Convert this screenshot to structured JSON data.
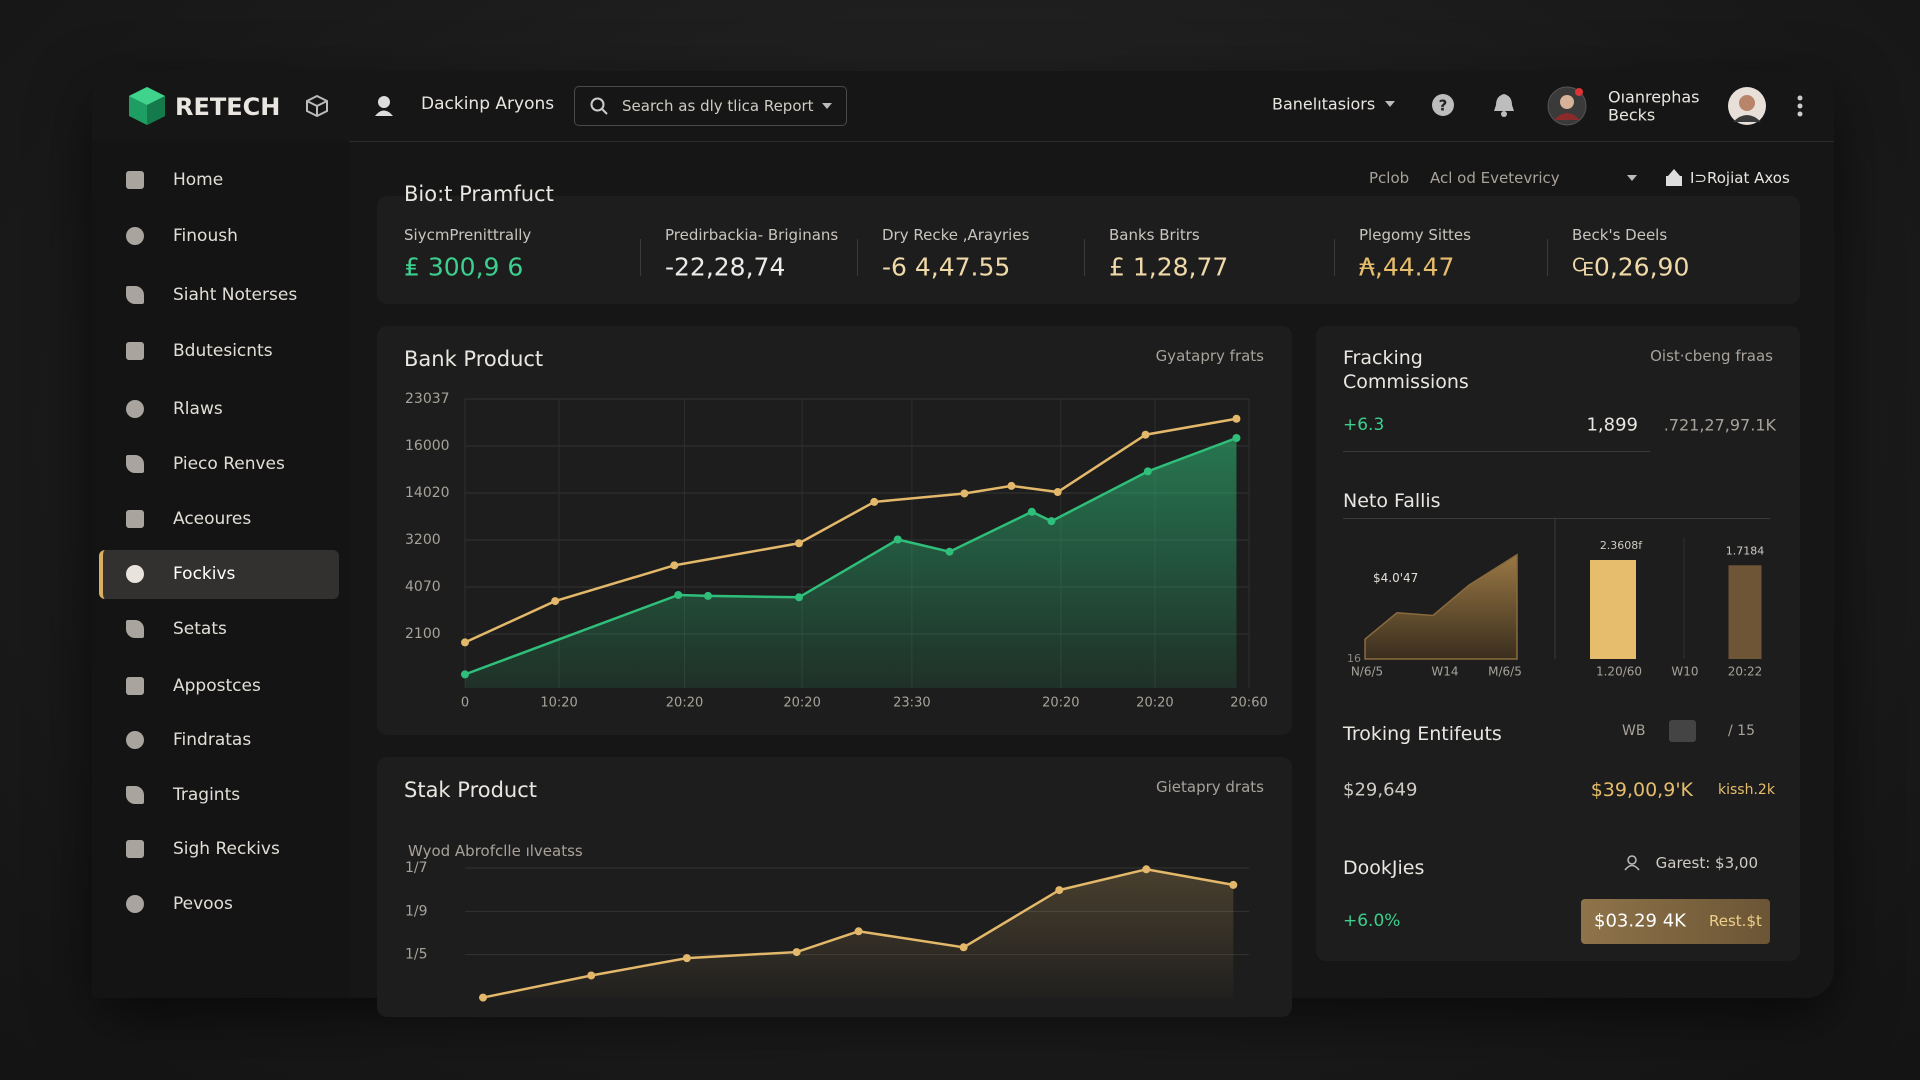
{
  "header": {
    "brand": "RETECH",
    "workspace": "Dackinp Aryons",
    "search": "Search as dly tlica Report",
    "menu": "Banelıtasiors",
    "user": [
      "Oıanrephas",
      "Becks"
    ]
  },
  "sidebar": {
    "items": [
      "Home",
      "Finoush",
      "Siaht Noterses",
      "Bdutesicnts",
      "Rlaws",
      "Pieco Renves",
      "Aceoures",
      "Fockivs",
      "Setats",
      "Appostces",
      "Findratas",
      "Tragints",
      "Sigh Reckivs",
      "Pevoos"
    ],
    "active": 7
  },
  "kpi": {
    "title": "Bio:t Pramfuct",
    "controls": [
      "Pclob",
      "Acl od Evetevricy",
      "I⊃Rojiat Axos"
    ],
    "items": [
      {
        "label": "SiycmPrenittrally",
        "value": "₤ 300,9 6"
      },
      {
        "label": "Predirbackia- Briginans",
        "value": "-22,28,74"
      },
      {
        "label": "Dry Recke ,Arayries",
        "value": "-6 4,47.55"
      },
      {
        "label": "Banks Britrs",
        "value": "£ 1,28,77"
      },
      {
        "label": "Plegomy Sittes",
        "value": "₳,44.47"
      },
      {
        "label": "Beck's Deels",
        "value": "₠0,26,90"
      }
    ]
  },
  "chart_data": [
    {
      "type": "line",
      "title": "Bank Product",
      "note": "Gyatapry frats",
      "xlim": [
        0,
        100
      ],
      "ylim": [
        -1.15,
        5
      ],
      "xticks": [
        {
          "value": 0,
          "label": "0"
        },
        {
          "value": 12,
          "label": "10:20"
        },
        {
          "value": 28,
          "label": "20:20"
        },
        {
          "value": 43,
          "label": "20:20"
        },
        {
          "value": 57,
          "label": "23:30"
        },
        {
          "value": 76,
          "label": "20:20"
        },
        {
          "value": 88,
          "label": "20:20"
        },
        {
          "value": 100,
          "label": "20:60"
        }
      ],
      "yticks": [
        {
          "value": 5,
          "label": "23037"
        },
        {
          "value": 4,
          "label": "16000"
        },
        {
          "value": 3,
          "label": "14020"
        },
        {
          "value": 2,
          "label": "3200"
        },
        {
          "value": 1,
          "label": "4070"
        },
        {
          "value": 0,
          "label": "2100"
        }
      ],
      "grid": true,
      "series": [
        {
          "color": "#e3b86a",
          "fill": false,
          "x": [
            0,
            11.5,
            26.7,
            42.6,
            52.2,
            63.7,
            69.7,
            75.6,
            86.8,
            98.4
          ],
          "values": [
            -0.18,
            0.7,
            1.46,
            1.93,
            2.81,
            2.99,
            3.15,
            3.02,
            4.24,
            4.58
          ]
        },
        {
          "color": "#2fbf7a",
          "fill": true,
          "x": [
            0,
            27.2,
            31,
            42.6,
            55.2,
            61.8,
            72.3,
            74.8,
            87.1,
            98.4
          ],
          "values": [
            -0.86,
            0.83,
            0.81,
            0.78,
            2.01,
            1.75,
            2.6,
            2.4,
            3.46,
            4.17
          ]
        }
      ]
    },
    {
      "type": "line",
      "title": "Stak Product",
      "note": "Gietapry drats",
      "subtitle": "Wyod Abrofclle ılveatss",
      "xlim": [
        0,
        100
      ],
      "ylim": [
        -1,
        2
      ],
      "yticks": [
        {
          "value": 2,
          "label": "1/7"
        },
        {
          "value": 1,
          "label": "1/9"
        },
        {
          "value": 0,
          "label": "1/5"
        }
      ],
      "grid": true,
      "series": [
        {
          "color": "#e3b86a",
          "fill": true,
          "x": [
            2.3,
            16.1,
            28.3,
            42.3,
            50.2,
            63.6,
            75.8,
            86.9,
            98
          ],
          "values": [
            -0.99,
            -0.48,
            -0.08,
            0.06,
            0.54,
            0.17,
            1.49,
            1.97,
            1.61
          ]
        }
      ]
    },
    {
      "type": "combo",
      "title": "Neto Fallis",
      "xlim": [
        0,
        100
      ],
      "ylim": [
        0,
        100
      ],
      "xticks": [
        {
          "value": 0.5,
          "label": "N/6/5"
        },
        {
          "value": 20,
          "label": "W14"
        },
        {
          "value": 35,
          "label": "M/6/5"
        },
        {
          "value": 63.5,
          "label": "1.20/60"
        },
        {
          "value": 80,
          "label": "W10"
        },
        {
          "value": 95,
          "label": "20:22"
        }
      ],
      "yticks": [
        {
          "value": 0,
          "label": "16"
        }
      ],
      "area": {
        "color": "#8a6a3c",
        "label": "$4.0'47",
        "x": [
          0,
          8,
          17,
          26,
          38
        ],
        "values": [
          15,
          35,
          33,
          56,
          79
        ]
      },
      "bars": [
        {
          "color": "#e6bd6c",
          "label": "2.3608f",
          "x": 62,
          "value": 75
        },
        {
          "color": "#6e5535",
          "label": "1.7184",
          "x": 95,
          "value": 71
        }
      ]
    }
  ],
  "right": {
    "tracking": {
      "title": [
        "Fracking",
        "Commissions"
      ],
      "note": "Oist·cbeng fraas",
      "change": "+6.3",
      "count": "1,899",
      "total": ".721,27,97.1K"
    },
    "troking": {
      "title": "Troking Entifeuts",
      "tab": "WB",
      "page": "/ 15",
      "left": "$29,649",
      "right": "$39,00,9'K",
      "small": "kissh.2k"
    },
    "dookjies": {
      "title": "DookJies",
      "guest": "Garest: $3,00",
      "change": "+6.0%",
      "button": "$03.29 4K",
      "button_note": "Rest.$t"
    }
  }
}
